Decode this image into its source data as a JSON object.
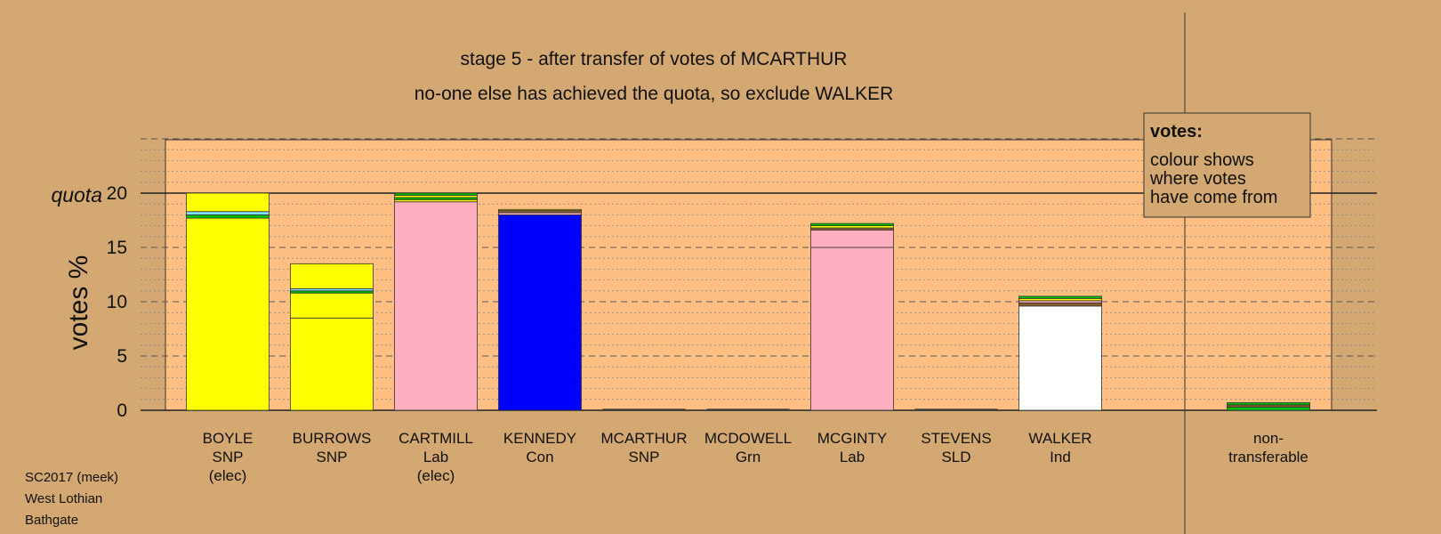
{
  "chart_data": {
    "type": "bar",
    "title": "stage 5 - after transfer of votes of MCARTHUR",
    "subtitle": "no-one else has achieved the quota, so exclude WALKER",
    "ylabel": "votes %",
    "ylim": [
      0,
      25
    ],
    "yticks": [
      0,
      5,
      10,
      15,
      20
    ],
    "quota_label": "quota",
    "quota": 20,
    "grid": true,
    "legend_position": "top-right",
    "legend": {
      "title": "votes:",
      "lines": [
        "colour shows",
        "where votes",
        "have come from"
      ]
    },
    "candidates": [
      {
        "name": "BOYLE",
        "party": "SNP",
        "status": "(elec)",
        "segments": [
          {
            "value": 17.7,
            "color": "#ffff00"
          },
          {
            "value": 0.3,
            "color": "#00c000"
          },
          {
            "value": 0.3,
            "color": "#80e0ff"
          },
          {
            "value": 1.7,
            "color": "#ffff00"
          }
        ]
      },
      {
        "name": "BURROWS",
        "party": "SNP",
        "status": "",
        "segments": [
          {
            "value": 8.5,
            "color": "#ffff00"
          },
          {
            "value": 2.3,
            "color": "#ffff00"
          },
          {
            "value": 0.2,
            "color": "#00c000"
          },
          {
            "value": 0.2,
            "color": "#80e0ff"
          },
          {
            "value": 2.3,
            "color": "#ffff00"
          }
        ]
      },
      {
        "name": "CARTMILL",
        "party": "Lab",
        "status": "(elec)",
        "segments": [
          {
            "value": 19.2,
            "color": "#ffb0c0"
          },
          {
            "value": 0.2,
            "color": "#ffff00"
          },
          {
            "value": 0.2,
            "color": "#00c000"
          },
          {
            "value": 0.2,
            "color": "#ffff00"
          },
          {
            "value": 0.2,
            "color": "#00c000"
          }
        ]
      },
      {
        "name": "KENNEDY",
        "party": "Con",
        "status": "",
        "segments": [
          {
            "value": 18.0,
            "color": "#0000ff"
          },
          {
            "value": 0.2,
            "color": "#ffb0c0"
          },
          {
            "value": 0.2,
            "color": "#8b5a2b"
          },
          {
            "value": 0.1,
            "color": "#ffff00"
          }
        ]
      },
      {
        "name": "MCARTHUR",
        "party": "SNP",
        "status": "",
        "segments": []
      },
      {
        "name": "MCDOWELL",
        "party": "Grn",
        "status": "",
        "segments": []
      },
      {
        "name": "MCGINTY",
        "party": "Lab",
        "status": "",
        "segments": [
          {
            "value": 15.0,
            "color": "#ffb0c0"
          },
          {
            "value": 1.6,
            "color": "#ffb0c0"
          },
          {
            "value": 0.2,
            "color": "#8b5a2b"
          },
          {
            "value": 0.2,
            "color": "#ffff00"
          },
          {
            "value": 0.2,
            "color": "#00c000"
          }
        ]
      },
      {
        "name": "STEVENS",
        "party": "SLD",
        "status": "",
        "segments": []
      },
      {
        "name": "WALKER",
        "party": "Ind",
        "status": "",
        "segments": [
          {
            "value": 9.6,
            "color": "#ffffff"
          },
          {
            "value": 0.3,
            "color": "#8b5a2b"
          },
          {
            "value": 0.2,
            "color": "#ffb0c0"
          },
          {
            "value": 0.2,
            "color": "#ffff00"
          },
          {
            "value": 0.2,
            "color": "#00c000"
          }
        ]
      }
    ],
    "nontransferable": {
      "label_lines": [
        "non-",
        "transferable"
      ],
      "segments": [
        {
          "value": 0.3,
          "color": "#00c000"
        },
        {
          "value": 0.2,
          "color": "#8b5a2b"
        },
        {
          "value": 0.2,
          "color": "#00c000"
        }
      ]
    }
  },
  "footer": [
    "SC2017 (meek)",
    "West Lothian",
    "Bathgate"
  ],
  "colors": {
    "background": "#d4a872",
    "plot_background": "#ffbe82",
    "legend_background": "#d4a872"
  }
}
